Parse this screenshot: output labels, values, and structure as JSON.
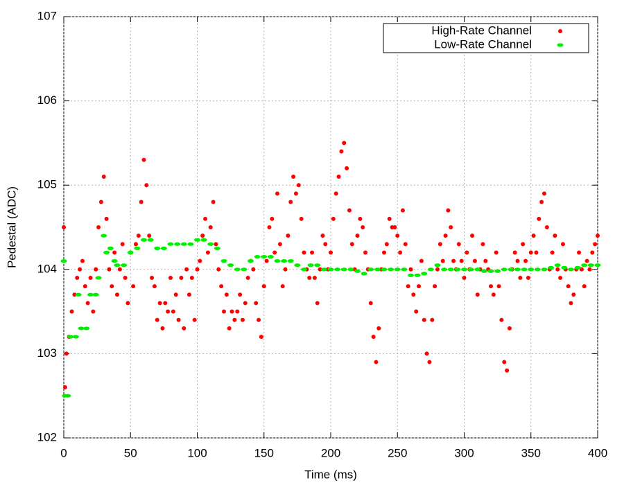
{
  "chart_data": {
    "type": "scatter",
    "xlabel": "Time (ms)",
    "ylabel": "Pedestal (ADC)",
    "xlim": [
      0,
      400
    ],
    "ylim": [
      102,
      107
    ],
    "xticks": [
      0,
      50,
      100,
      150,
      200,
      250,
      300,
      350,
      400
    ],
    "yticks": [
      102,
      103,
      104,
      105,
      106,
      107
    ],
    "grid": true,
    "legend": "upper right",
    "series": [
      {
        "name": "High-Rate Channel",
        "color": "#ff0000",
        "marker": "dot",
        "x": [
          0,
          1,
          2,
          4,
          6,
          8,
          10,
          12,
          14,
          16,
          18,
          20,
          22,
          24,
          26,
          28,
          30,
          32,
          34,
          36,
          38,
          40,
          42,
          44,
          46,
          48,
          50,
          52,
          54,
          56,
          58,
          60,
          62,
          64,
          66,
          68,
          70,
          72,
          74,
          76,
          78,
          80,
          82,
          84,
          86,
          88,
          90,
          92,
          94,
          96,
          98,
          100,
          102,
          104,
          106,
          108,
          110,
          112,
          114,
          116,
          118,
          120,
          122,
          124,
          126,
          128,
          130,
          132,
          134,
          136,
          138,
          140,
          142,
          144,
          146,
          148,
          150,
          152,
          154,
          156,
          158,
          160,
          162,
          164,
          166,
          168,
          170,
          172,
          174,
          176,
          178,
          180,
          182,
          184,
          186,
          188,
          190,
          192,
          194,
          196,
          198,
          200,
          202,
          204,
          206,
          208,
          210,
          212,
          214,
          216,
          218,
          220,
          222,
          224,
          226,
          228,
          230,
          232,
          234,
          236,
          238,
          240,
          242,
          244,
          246,
          248,
          250,
          252,
          254,
          256,
          258,
          260,
          262,
          264,
          266,
          268,
          270,
          272,
          274,
          276,
          278,
          280,
          282,
          284,
          286,
          288,
          290,
          292,
          294,
          296,
          298,
          300,
          302,
          304,
          306,
          308,
          310,
          312,
          314,
          316,
          318,
          320,
          322,
          324,
          326,
          328,
          330,
          332,
          334,
          336,
          338,
          340,
          342,
          344,
          346,
          348,
          350,
          352,
          354,
          356,
          358,
          360,
          362,
          364,
          366,
          368,
          370,
          372,
          374,
          376,
          378,
          380,
          382,
          384,
          386,
          388,
          390,
          392,
          394,
          396,
          398,
          400
        ],
        "values": [
          104.5,
          102.6,
          103.0,
          103.2,
          103.5,
          103.7,
          103.9,
          104.0,
          104.1,
          103.8,
          103.6,
          103.9,
          103.5,
          104.0,
          104.5,
          104.8,
          105.1,
          104.6,
          104.0,
          103.8,
          104.2,
          103.7,
          104.0,
          104.3,
          103.9,
          103.6,
          104.2,
          103.8,
          104.3,
          104.4,
          104.8,
          105.3,
          105.0,
          104.4,
          103.9,
          103.8,
          103.4,
          103.6,
          103.3,
          103.6,
          103.5,
          103.9,
          103.5,
          103.7,
          103.4,
          103.9,
          103.3,
          104.0,
          103.7,
          103.9,
          103.4,
          104.0,
          104.1,
          104.4,
          104.6,
          104.2,
          104.5,
          104.8,
          104.3,
          104.0,
          103.8,
          103.5,
          103.7,
          103.3,
          103.5,
          103.4,
          103.5,
          103.7,
          103.4,
          103.6,
          103.9,
          104.1,
          104.0,
          103.6,
          103.4,
          103.2,
          103.8,
          104.1,
          104.5,
          104.6,
          104.2,
          104.9,
          104.3,
          103.8,
          104.0,
          104.4,
          104.8,
          105.1,
          104.9,
          105.0,
          104.6,
          104.2,
          104.0,
          103.9,
          104.2,
          103.9,
          103.6,
          104.0,
          104.4,
          104.3,
          104.0,
          104.2,
          104.6,
          104.9,
          105.1,
          105.4,
          105.5,
          105.2,
          104.7,
          104.3,
          104.0,
          104.4,
          104.6,
          104.5,
          104.2,
          104.0,
          103.6,
          103.2,
          102.9,
          103.3,
          104.0,
          104.2,
          104.3,
          104.6,
          104.5,
          104.5,
          104.4,
          104.2,
          104.7,
          104.3,
          103.8,
          104.0,
          103.7,
          103.5,
          103.8,
          104.1,
          103.4,
          103.0,
          102.9,
          103.4,
          103.8,
          104.0,
          104.3,
          104.1,
          104.4,
          104.7,
          104.5,
          104.1,
          104.0,
          104.3,
          104.1,
          103.9,
          104.2,
          104.0,
          104.4,
          104.1,
          103.7,
          104.0,
          104.3,
          104.1,
          104.0,
          103.8,
          103.7,
          104.2,
          103.8,
          103.4,
          102.9,
          102.8,
          103.3,
          104.0,
          104.2,
          104.1,
          103.9,
          104.3,
          104.1,
          103.9,
          104.2,
          104.4,
          104.2,
          104.6,
          104.8,
          104.9,
          104.5,
          104.0,
          104.2,
          104.4,
          104.0,
          103.9,
          104.3,
          104.0,
          103.8,
          103.6,
          103.7,
          104.0,
          104.2,
          104.0,
          103.8,
          104.1,
          104.0,
          104.2,
          104.3,
          104.4
        ]
      },
      {
        "name": "Low-Rate Channel",
        "color": "#00ee00",
        "marker": "dash",
        "x": [
          0,
          1,
          3,
          5,
          9,
          11,
          13,
          17,
          20,
          24,
          26,
          30,
          32,
          35,
          38,
          40,
          45,
          50,
          55,
          60,
          65,
          70,
          75,
          80,
          85,
          90,
          95,
          100,
          105,
          110,
          115,
          120,
          125,
          130,
          135,
          140,
          145,
          150,
          155,
          160,
          165,
          170,
          175,
          180,
          185,
          190,
          195,
          200,
          205,
          210,
          215,
          220,
          225,
          230,
          235,
          240,
          245,
          250,
          255,
          260,
          265,
          270,
          275,
          280,
          285,
          290,
          295,
          300,
          305,
          310,
          315,
          320,
          325,
          330,
          335,
          340,
          345,
          350,
          355,
          360,
          365,
          370,
          375,
          380,
          385,
          390,
          395,
          400
        ],
        "values": [
          104.1,
          102.5,
          102.5,
          103.2,
          103.2,
          103.7,
          103.3,
          103.3,
          103.7,
          103.7,
          103.9,
          104.4,
          104.2,
          104.25,
          104.1,
          104.05,
          104.05,
          104.2,
          104.25,
          104.35,
          104.35,
          104.25,
          104.25,
          104.3,
          104.3,
          104.3,
          104.3,
          104.35,
          104.35,
          104.3,
          104.25,
          104.1,
          104.05,
          104.0,
          104.0,
          104.1,
          104.15,
          104.15,
          104.15,
          104.1,
          104.1,
          104.1,
          104.05,
          104.0,
          104.05,
          104.05,
          104.0,
          104.0,
          104.0,
          104.0,
          104.0,
          103.98,
          103.95,
          104.0,
          104.0,
          104.0,
          104.0,
          104.0,
          104.0,
          103.93,
          103.93,
          103.95,
          104.0,
          104.05,
          104.0,
          104.0,
          104.0,
          104.0,
          104.0,
          104.0,
          103.98,
          103.98,
          103.98,
          104.0,
          104.0,
          104.0,
          104.0,
          104.0,
          104.0,
          104.0,
          104.02,
          104.05,
          104.02,
          104.0,
          104.02,
          104.05,
          104.05,
          104.05
        ]
      }
    ]
  }
}
